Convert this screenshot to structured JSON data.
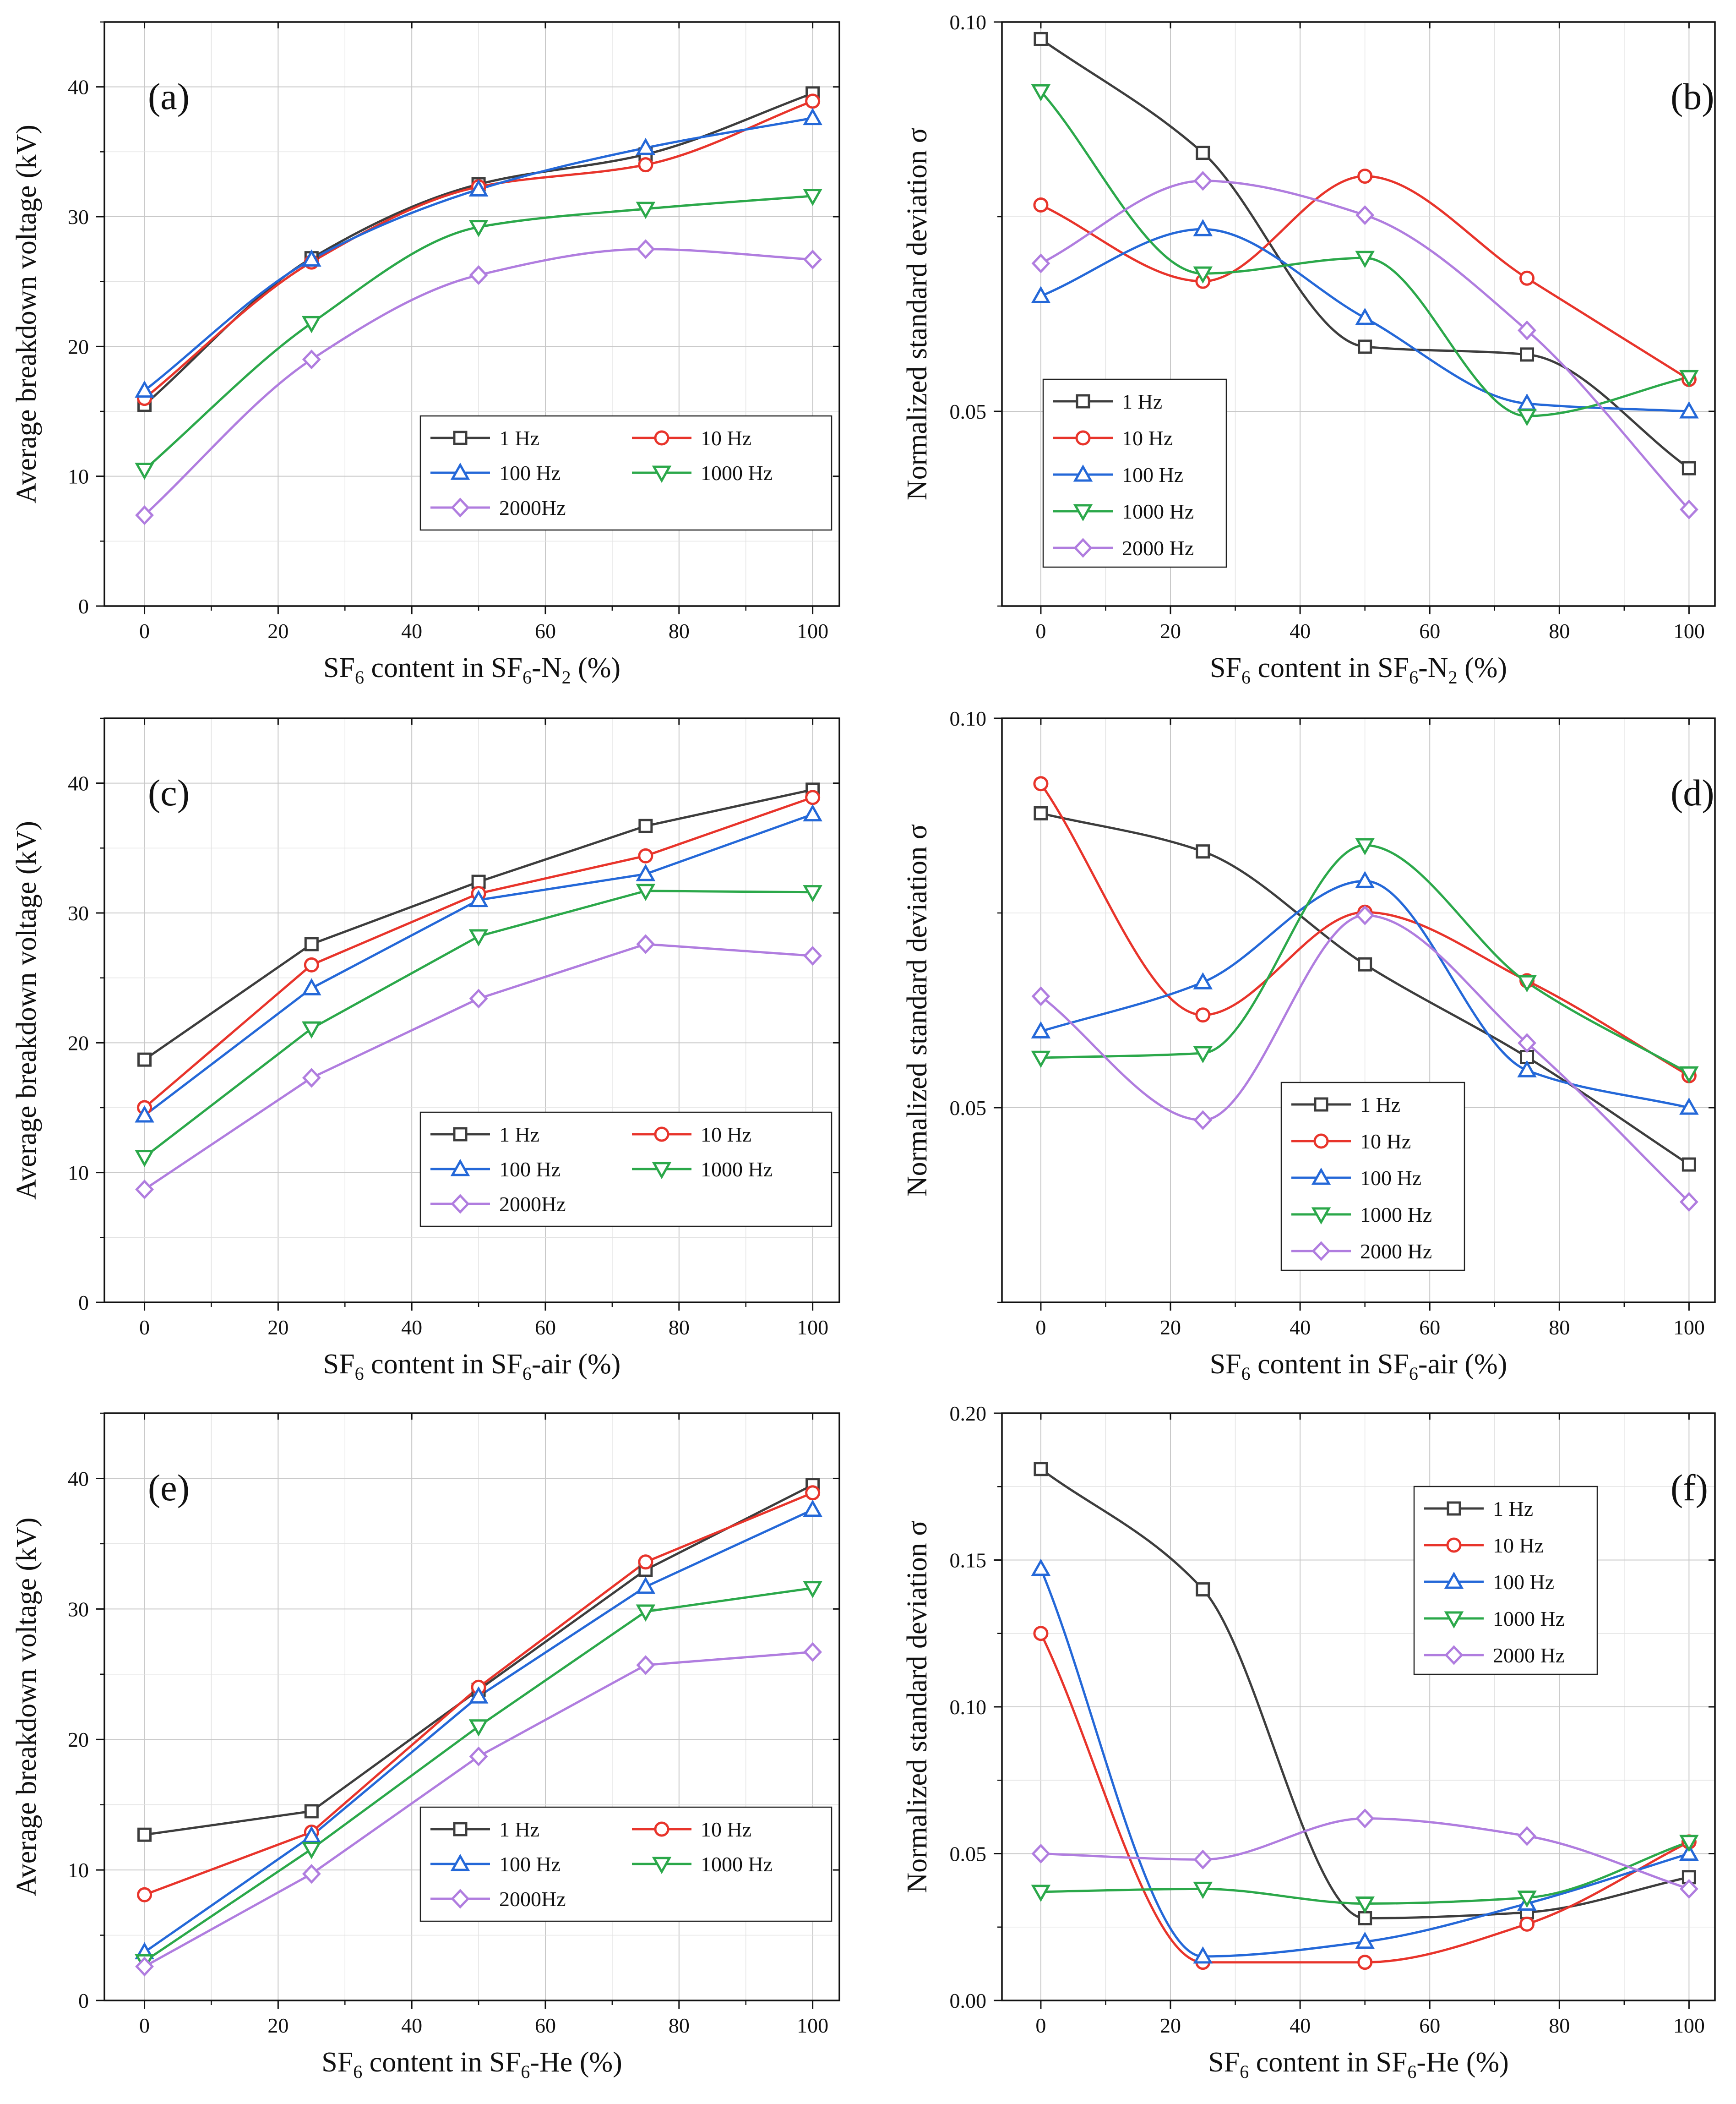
{
  "colors": {
    "1 Hz": "#3d3d3d",
    "10 Hz": "#e8342b",
    "100 Hz": "#2468d8",
    "1000 Hz": "#2ba84a",
    "2000 Hz": "#b07ddf"
  },
  "chart_data": [
    {
      "id": "a",
      "type": "line",
      "panel_label": "(a)",
      "xlabel_parts": [
        "SF",
        "6",
        " content in SF",
        "6",
        "-N",
        "2",
        " (%)"
      ],
      "ylabel": "Average breakdown voltage (kV)",
      "xlim": [
        -6,
        104
      ],
      "ylim": [
        0,
        45
      ],
      "xticks": [
        0,
        20,
        40,
        60,
        80,
        100
      ],
      "xtick_labels": [
        "0",
        "20",
        "40",
        "60",
        "80",
        "100"
      ],
      "yticks": [
        0,
        10,
        20,
        30,
        40
      ],
      "ytick_labels": [
        "0",
        "10",
        "20",
        "30",
        "40"
      ],
      "grid": true,
      "legend_position": "bottom-right",
      "legend_columns": 2,
      "x": [
        0,
        25,
        50,
        75,
        100
      ],
      "series": [
        {
          "name": "1 Hz",
          "marker": "square",
          "values": [
            15.5,
            26.8,
            32.5,
            34.8,
            39.5
          ]
        },
        {
          "name": "10  Hz",
          "marker": "circle",
          "values": [
            16.0,
            26.5,
            32.3,
            34.0,
            38.9
          ]
        },
        {
          "name": "100 Hz",
          "marker": "triangle-up",
          "values": [
            16.6,
            26.7,
            32.1,
            35.3,
            37.6
          ]
        },
        {
          "name": "1000 Hz",
          "marker": "triangle-down",
          "values": [
            10.5,
            21.8,
            29.2,
            30.6,
            31.6
          ]
        },
        {
          "name": "2000Hz",
          "marker": "diamond",
          "values": [
            7.0,
            19.0,
            25.5,
            27.5,
            26.7
          ]
        }
      ]
    },
    {
      "id": "b",
      "type": "line",
      "panel_label": "(b)",
      "xlabel_parts": [
        "SF",
        "6",
        " content in SF",
        "6",
        "-N",
        "2",
        " (%)"
      ],
      "ylabel": "Normalized standard deviation σ",
      "xlim": [
        -6,
        104
      ],
      "ylim": [
        0.025,
        0.1
      ],
      "xticks": [
        0,
        20,
        40,
        60,
        80,
        100
      ],
      "xtick_labels": [
        "0",
        "20",
        "40",
        "60",
        "80",
        "100"
      ],
      "yticks": [
        0.05,
        0.1
      ],
      "ytick_labels": [
        "0.05",
        "0.10"
      ],
      "grid": true,
      "legend_position": "center-left",
      "legend_columns": 1,
      "x": [
        0,
        25,
        50,
        75,
        100
      ],
      "series": [
        {
          "name": "1 Hz",
          "marker": "square",
          "values": [
            0.0978,
            0.0832,
            0.0583,
            0.0573,
            0.0427
          ]
        },
        {
          "name": "10 Hz",
          "marker": "circle",
          "values": [
            0.0765,
            0.0667,
            0.0802,
            0.0671,
            0.0541
          ]
        },
        {
          "name": "100 Hz",
          "marker": "triangle-up",
          "values": [
            0.0648,
            0.0734,
            0.062,
            0.051,
            0.05
          ]
        },
        {
          "name": "1000 Hz",
          "marker": "triangle-down",
          "values": [
            0.0911,
            0.0677,
            0.0697,
            0.0494,
            0.0544
          ]
        },
        {
          "name": "2000 Hz",
          "marker": "diamond",
          "values": [
            0.069,
            0.0796,
            0.0752,
            0.0604,
            0.0374
          ]
        }
      ]
    },
    {
      "id": "c",
      "type": "line",
      "panel_label": "(c)",
      "xlabel_parts": [
        "SF",
        "6",
        " content in SF",
        "6",
        "-air (%)"
      ],
      "ylabel": "Average breakdown voltage (kV)",
      "xlim": [
        -6,
        104
      ],
      "ylim": [
        0,
        45
      ],
      "xticks": [
        0,
        20,
        40,
        60,
        80,
        100
      ],
      "xtick_labels": [
        "0",
        "20",
        "40",
        "60",
        "80",
        "100"
      ],
      "yticks": [
        0,
        10,
        20,
        30,
        40
      ],
      "ytick_labels": [
        "0",
        "10",
        "20",
        "30",
        "40"
      ],
      "grid": true,
      "legend_position": "bottom-right",
      "legend_columns": 2,
      "x": [
        0,
        25,
        50,
        75,
        100
      ],
      "series": [
        {
          "name": "1 Hz",
          "marker": "square",
          "values": [
            18.7,
            27.6,
            32.4,
            36.7,
            39.5
          ]
        },
        {
          "name": "10  Hz",
          "marker": "circle",
          "values": [
            15.0,
            26.0,
            31.5,
            34.4,
            38.9
          ]
        },
        {
          "name": "100 Hz",
          "marker": "triangle-up",
          "values": [
            14.4,
            24.2,
            31.0,
            33.0,
            37.6
          ]
        },
        {
          "name": "1000 Hz",
          "marker": "triangle-down",
          "values": [
            11.2,
            21.1,
            28.2,
            31.7,
            31.6
          ]
        },
        {
          "name": "2000Hz",
          "marker": "diamond",
          "values": [
            8.7,
            17.3,
            23.4,
            27.6,
            26.7
          ]
        }
      ]
    },
    {
      "id": "d",
      "type": "line",
      "panel_label": "(d)",
      "xlabel_parts": [
        "SF",
        "6",
        " content in SF",
        "6",
        "-air (%)"
      ],
      "ylabel": "Normalized standard deviation σ",
      "xlim": [
        -6,
        104
      ],
      "ylim": [
        0.025,
        0.1
      ],
      "xticks": [
        0,
        20,
        40,
        60,
        80,
        100
      ],
      "xtick_labels": [
        "0",
        "20",
        "40",
        "60",
        "80",
        "100"
      ],
      "yticks": [
        0.05,
        0.1
      ],
      "ytick_labels": [
        "0.05",
        "0.10"
      ],
      "grid": true,
      "legend_position": "bottom-center",
      "legend_columns": 1,
      "x": [
        0,
        25,
        50,
        75,
        100
      ],
      "series": [
        {
          "name": "1 Hz",
          "marker": "square",
          "values": [
            0.0878,
            0.0829,
            0.0684,
            0.0565,
            0.0427
          ]
        },
        {
          "name": "10 Hz",
          "marker": "circle",
          "values": [
            0.0916,
            0.0619,
            0.0751,
            0.0663,
            0.0541
          ]
        },
        {
          "name": "100 Hz",
          "marker": "triangle-up",
          "values": [
            0.0598,
            0.0661,
            0.0791,
            0.0548,
            0.05
          ]
        },
        {
          "name": "1000 Hz",
          "marker": "triangle-down",
          "values": [
            0.0564,
            0.057,
            0.0837,
            0.0661,
            0.0544
          ]
        },
        {
          "name": "2000 Hz",
          "marker": "diamond",
          "values": [
            0.0643,
            0.0484,
            0.0747,
            0.0583,
            0.0379
          ]
        }
      ]
    },
    {
      "id": "e",
      "type": "line",
      "panel_label": "(e)",
      "xlabel_parts": [
        "SF",
        "6",
        " content in SF",
        "6",
        "-He (%)"
      ],
      "ylabel": "Average breakdown voltage (kV)",
      "xlim": [
        -6,
        104
      ],
      "ylim": [
        0,
        45
      ],
      "xticks": [
        0,
        20,
        40,
        60,
        80,
        100
      ],
      "xtick_labels": [
        "0",
        "20",
        "40",
        "60",
        "80",
        "100"
      ],
      "yticks": [
        0,
        10,
        20,
        30,
        40
      ],
      "ytick_labels": [
        "0",
        "10",
        "20",
        "30",
        "40"
      ],
      "grid": true,
      "legend_position": "bottom-right",
      "legend_columns": 2,
      "x": [
        0,
        25,
        50,
        75,
        100
      ],
      "series": [
        {
          "name": "1 Hz",
          "marker": "square",
          "values": [
            12.7,
            14.5,
            23.8,
            33.0,
            39.5
          ]
        },
        {
          "name": "10  Hz",
          "marker": "circle",
          "values": [
            8.1,
            12.9,
            24.0,
            33.6,
            38.9
          ]
        },
        {
          "name": "100 Hz",
          "marker": "triangle-up",
          "values": [
            3.7,
            12.6,
            23.3,
            31.7,
            37.6
          ]
        },
        {
          "name": "1000 Hz",
          "marker": "triangle-down",
          "values": [
            3.0,
            11.6,
            21.0,
            29.8,
            31.6
          ]
        },
        {
          "name": "2000Hz",
          "marker": "diamond",
          "values": [
            2.6,
            9.7,
            18.7,
            25.7,
            26.7
          ]
        }
      ]
    },
    {
      "id": "f",
      "type": "line",
      "panel_label": "(f)",
      "xlabel_parts": [
        "SF",
        "6",
        " content in SF",
        "6",
        "-He (%)"
      ],
      "ylabel": "Normalized standard deviation σ",
      "xlim": [
        -6,
        104
      ],
      "ylim": [
        0,
        0.2
      ],
      "xticks": [
        0,
        20,
        40,
        60,
        80,
        100
      ],
      "xtick_labels": [
        "0",
        "20",
        "40",
        "60",
        "80",
        "100"
      ],
      "yticks": [
        0,
        0.05,
        0.1,
        0.15,
        0.2
      ],
      "ytick_labels": [
        "0.00",
        "0.05",
        "0.10",
        "0.15",
        "0.20"
      ],
      "grid": true,
      "legend_position": "top-center",
      "legend_columns": 1,
      "x": [
        0,
        25,
        50,
        75,
        100
      ],
      "series": [
        {
          "name": "1 Hz",
          "marker": "square",
          "values": [
            0.181,
            0.14,
            0.028,
            0.03,
            0.042
          ]
        },
        {
          "name": "10 Hz",
          "marker": "circle",
          "values": [
            0.125,
            0.013,
            0.013,
            0.026,
            0.054
          ]
        },
        {
          "name": "100 Hz",
          "marker": "triangle-up",
          "values": [
            0.147,
            0.015,
            0.02,
            0.033,
            0.05
          ]
        },
        {
          "name": "1000 Hz",
          "marker": "triangle-down",
          "values": [
            0.037,
            0.038,
            0.033,
            0.035,
            0.054
          ]
        },
        {
          "name": "2000 Hz",
          "marker": "diamond",
          "values": [
            0.05,
            0.048,
            0.062,
            0.056,
            0.038
          ]
        }
      ]
    }
  ]
}
